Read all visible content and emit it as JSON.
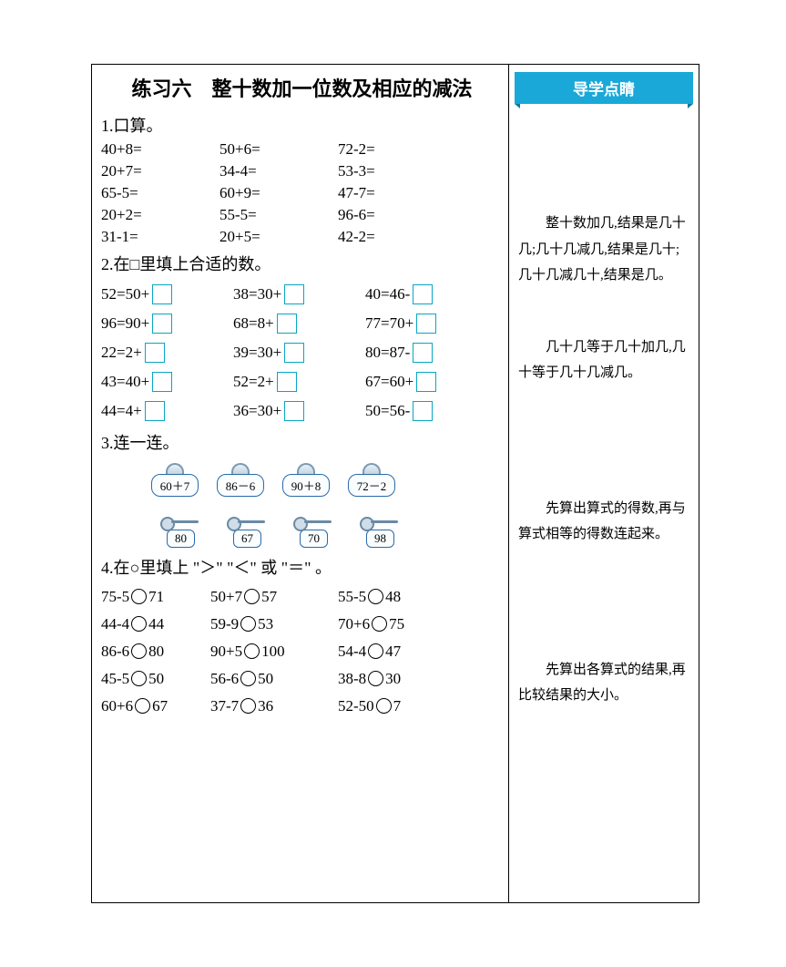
{
  "title": "练习六　整十数加一位数及相应的减法",
  "colors": {
    "accent": "#09a6c4",
    "ribbon": "#1aa8d8",
    "lockBorder": "#2a6aa8"
  },
  "q1": {
    "head": "1.口算。",
    "rows": [
      [
        "40+8=",
        "50+6=",
        "72-2="
      ],
      [
        "20+7=",
        "34-4=",
        "53-3="
      ],
      [
        "65-5=",
        "60+9=",
        "47-7="
      ],
      [
        "20+2=",
        "55-5=",
        "96-6="
      ],
      [
        "31-1=",
        "20+5=",
        "42-2="
      ]
    ]
  },
  "q2": {
    "head": "2.在□里填上合适的数。",
    "rows": [
      [
        "52=50+",
        "38=30+",
        "40=46-"
      ],
      [
        "96=90+",
        "68=8+",
        "77=70+"
      ],
      [
        "22=2+",
        "39=30+",
        "80=87-"
      ],
      [
        "43=40+",
        "52=2+",
        "67=60+"
      ],
      [
        "44=4+",
        "36=30+",
        "50=56-"
      ]
    ]
  },
  "q3": {
    "head": "3.连一连。",
    "locks": [
      "60＋7",
      "86－6",
      "90＋8",
      "72－2"
    ],
    "keys": [
      "80",
      "67",
      "70",
      "98"
    ]
  },
  "q4": {
    "head": "4.在○里填上 \"＞\" \"＜\" 或 \"＝\" 。",
    "rows": [
      [
        [
          "75-5",
          "71"
        ],
        [
          "50+7",
          "57"
        ],
        [
          "55-5",
          "48"
        ]
      ],
      [
        [
          "44-4",
          "44"
        ],
        [
          "59-9",
          "53"
        ],
        [
          "70+6",
          "75"
        ]
      ],
      [
        [
          "86-6",
          "80"
        ],
        [
          "90+5",
          "100"
        ],
        [
          "54-4",
          "47"
        ]
      ],
      [
        [
          "45-5",
          "50"
        ],
        [
          "56-6",
          "50"
        ],
        [
          "38-8",
          "30"
        ]
      ],
      [
        [
          "60+6",
          "67"
        ],
        [
          "37-7",
          "36"
        ],
        [
          "52-50",
          "7"
        ]
      ]
    ]
  },
  "guide": {
    "title": "导学点睛",
    "notes": [
      "整十数加几,结果是几十几;几十几减几,结果是几十;几十几减几十,结果是几。",
      "几十几等于几十加几,几十等于几十几减几。",
      "先算出算式的得数,再与算式相等的得数连起来。",
      "先算出各算式的结果,再比较结果的大小。"
    ]
  }
}
